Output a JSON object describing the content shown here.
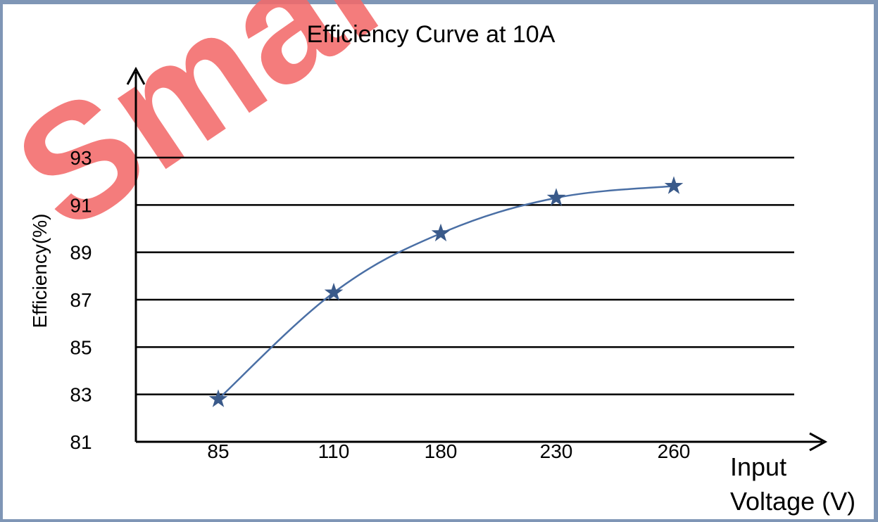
{
  "watermark": "Smart",
  "colors": {
    "series": "#4a6fa5",
    "marker": "#3a5a8a",
    "frame": "#7f96b6",
    "watermark": "#f36a6a"
  },
  "chart_data": {
    "type": "line",
    "title": "Efficiency Curve at 10A",
    "xlabel": "Input Voltage (V)",
    "ylabel": "Efficiency(%)",
    "categories": [
      "85",
      "110",
      "180",
      "230",
      "260"
    ],
    "values": [
      82.8,
      87.3,
      89.8,
      91.3,
      91.8
    ],
    "yticks": [
      81,
      83,
      85,
      87,
      89,
      91,
      93
    ],
    "ylim": [
      81,
      93
    ],
    "grid": "horizontal",
    "marker": "star"
  }
}
